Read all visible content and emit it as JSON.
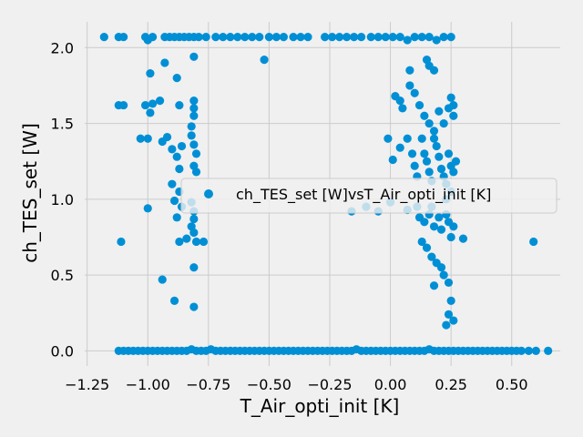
{
  "chart_data": {
    "type": "scatter",
    "xlabel": "T_Air_opti_init [K]",
    "ylabel": "ch_TES_set [W]",
    "xlim": [
      -1.26,
      0.7
    ],
    "ylim": [
      -0.1,
      2.17
    ],
    "xticks": [
      -1.25,
      -1.0,
      -0.75,
      -0.5,
      -0.25,
      0.0,
      0.25,
      0.5
    ],
    "xtick_labels": [
      "−1.25",
      "−1.00",
      "−0.75",
      "−0.50",
      "−0.25",
      "0.00",
      "0.25",
      "0.50"
    ],
    "yticks": [
      0.0,
      0.5,
      1.0,
      1.5,
      2.0
    ],
    "ytick_labels": [
      "0.0",
      "0.5",
      "1.0",
      "1.5",
      "2.0"
    ],
    "grid": true,
    "legend_position": "center-right",
    "colors": {
      "series": "#008fd5",
      "background": "#f0f0f0",
      "grid": "#cbcbcb"
    },
    "series": [
      {
        "name": "ch_TES_set [W]vsT_Air_opti_init [K]",
        "points": [
          [
            -1.18,
            2.07
          ],
          [
            -1.12,
            2.07
          ],
          [
            -1.1,
            2.07
          ],
          [
            -1.01,
            2.07
          ],
          [
            -1.0,
            2.05
          ],
          [
            -0.98,
            2.07
          ],
          [
            -0.93,
            2.07
          ],
          [
            -0.91,
            2.07
          ],
          [
            -0.89,
            2.07
          ],
          [
            -0.87,
            2.07
          ],
          [
            -0.85,
            2.07
          ],
          [
            -0.83,
            2.07
          ],
          [
            -0.81,
            2.07
          ],
          [
            -0.79,
            2.07
          ],
          [
            -0.76,
            2.07
          ],
          [
            -0.72,
            2.07
          ],
          [
            -0.69,
            2.07
          ],
          [
            -0.66,
            2.07
          ],
          [
            -0.63,
            2.07
          ],
          [
            -0.6,
            2.07
          ],
          [
            -0.57,
            2.07
          ],
          [
            -0.54,
            2.07
          ],
          [
            -0.5,
            2.07
          ],
          [
            -0.47,
            2.07
          ],
          [
            -0.44,
            2.07
          ],
          [
            -0.4,
            2.07
          ],
          [
            -0.37,
            2.07
          ],
          [
            -0.34,
            2.07
          ],
          [
            -0.27,
            2.07
          ],
          [
            -0.24,
            2.07
          ],
          [
            -0.21,
            2.07
          ],
          [
            -0.18,
            2.07
          ],
          [
            -0.15,
            2.07
          ],
          [
            -0.12,
            2.07
          ],
          [
            -0.08,
            2.07
          ],
          [
            -0.05,
            2.07
          ],
          [
            -0.02,
            2.07
          ],
          [
            0.01,
            2.07
          ],
          [
            0.04,
            2.07
          ],
          [
            0.07,
            2.05
          ],
          [
            0.1,
            2.07
          ],
          [
            0.13,
            2.07
          ],
          [
            0.16,
            2.07
          ],
          [
            0.19,
            2.05
          ],
          [
            0.22,
            2.07
          ],
          [
            0.25,
            2.07
          ],
          [
            -0.52,
            1.92
          ],
          [
            -0.81,
            1.94
          ],
          [
            -0.93,
            1.9
          ],
          [
            -0.99,
            1.83
          ],
          [
            -0.88,
            1.8
          ],
          [
            0.08,
            1.85
          ],
          [
            0.16,
            1.88
          ],
          [
            0.18,
            1.85
          ],
          [
            0.15,
            1.92
          ],
          [
            -1.12,
            1.62
          ],
          [
            -1.1,
            1.62
          ],
          [
            -1.01,
            1.62
          ],
          [
            -0.98,
            1.63
          ],
          [
            -0.95,
            1.65
          ],
          [
            -0.99,
            1.57
          ],
          [
            -0.87,
            1.62
          ],
          [
            -0.81,
            1.65
          ],
          [
            -0.81,
            1.6
          ],
          [
            -0.81,
            1.55
          ],
          [
            -0.82,
            1.48
          ],
          [
            0.02,
            1.68
          ],
          [
            0.04,
            1.65
          ],
          [
            0.05,
            1.6
          ],
          [
            0.08,
            1.75
          ],
          [
            0.1,
            1.7
          ],
          [
            0.12,
            1.62
          ],
          [
            0.14,
            1.55
          ],
          [
            0.16,
            1.5
          ],
          [
            0.18,
            1.45
          ],
          [
            0.2,
            1.58
          ],
          [
            0.22,
            1.5
          ],
          [
            0.24,
            1.6
          ],
          [
            0.25,
            1.67
          ],
          [
            0.26,
            1.62
          ],
          [
            0.26,
            1.55
          ],
          [
            -1.03,
            1.4
          ],
          [
            -1.0,
            1.4
          ],
          [
            -0.94,
            1.38
          ],
          [
            -0.92,
            1.41
          ],
          [
            -0.9,
            1.33
          ],
          [
            -0.88,
            1.28
          ],
          [
            -0.86,
            1.35
          ],
          [
            -0.82,
            1.42
          ],
          [
            -0.81,
            1.36
          ],
          [
            -0.8,
            1.3
          ],
          [
            -0.81,
            1.22
          ],
          [
            -0.8,
            1.18
          ],
          [
            -0.87,
            1.2
          ],
          [
            -0.9,
            1.1
          ],
          [
            -0.87,
            1.05
          ],
          [
            -0.01,
            1.4
          ],
          [
            0.01,
            1.26
          ],
          [
            0.04,
            1.34
          ],
          [
            0.07,
            1.4
          ],
          [
            0.09,
            1.3
          ],
          [
            0.1,
            1.22
          ],
          [
            0.11,
            1.15
          ],
          [
            0.13,
            1.4
          ],
          [
            0.14,
            1.3
          ],
          [
            0.15,
            1.25
          ],
          [
            0.16,
            1.18
          ],
          [
            0.17,
            1.12
          ],
          [
            0.18,
            1.4
          ],
          [
            0.19,
            1.35
          ],
          [
            0.2,
            1.28
          ],
          [
            0.21,
            1.2
          ],
          [
            0.22,
            1.15
          ],
          [
            0.23,
            1.1
          ],
          [
            0.24,
            1.3
          ],
          [
            0.25,
            1.22
          ],
          [
            0.26,
            1.18
          ],
          [
            0.27,
            1.25
          ],
          [
            0.25,
            1.05
          ],
          [
            0.23,
            1.0
          ],
          [
            -0.89,
            0.99
          ],
          [
            -0.86,
            0.95
          ],
          [
            -0.82,
            0.98
          ],
          [
            -0.81,
            0.92
          ],
          [
            -0.81,
            0.87
          ],
          [
            -0.82,
            0.82
          ],
          [
            -0.81,
            0.78
          ],
          [
            -1.0,
            0.94
          ],
          [
            -0.88,
            0.88
          ],
          [
            -0.84,
            0.74
          ],
          [
            -0.87,
            0.72
          ],
          [
            -0.8,
            0.72
          ],
          [
            -0.77,
            0.72
          ],
          [
            -1.11,
            0.72
          ],
          [
            -0.16,
            0.92
          ],
          [
            -0.1,
            0.95
          ],
          [
            -0.05,
            0.92
          ],
          [
            0.0,
            0.98
          ],
          [
            0.07,
            0.93
          ],
          [
            0.11,
            0.95
          ],
          [
            0.12,
            0.88
          ],
          [
            0.14,
            0.85
          ],
          [
            0.16,
            0.9
          ],
          [
            0.17,
            0.95
          ],
          [
            0.18,
            0.82
          ],
          [
            0.2,
            0.88
          ],
          [
            0.21,
            0.8
          ],
          [
            0.23,
            0.9
          ],
          [
            0.24,
            0.85
          ],
          [
            0.25,
            0.75
          ],
          [
            0.26,
            0.82
          ],
          [
            0.3,
            0.74
          ],
          [
            0.13,
            0.72
          ],
          [
            0.15,
            0.68
          ],
          [
            0.17,
            0.62
          ],
          [
            0.19,
            0.58
          ],
          [
            0.21,
            0.55
          ],
          [
            0.22,
            0.5
          ],
          [
            0.24,
            0.45
          ],
          [
            0.18,
            0.43
          ],
          [
            0.25,
            0.33
          ],
          [
            0.24,
            0.24
          ],
          [
            0.26,
            0.2
          ],
          [
            0.23,
            0.17
          ],
          [
            0.59,
            0.72
          ],
          [
            -0.94,
            0.47
          ],
          [
            -0.81,
            0.55
          ],
          [
            -0.89,
            0.33
          ],
          [
            -0.81,
            0.29
          ],
          [
            -1.12,
            0.0
          ],
          [
            -1.1,
            0.0
          ],
          [
            -1.08,
            0.0
          ],
          [
            -1.06,
            0.0
          ],
          [
            -1.04,
            0.0
          ],
          [
            -1.02,
            0.0
          ],
          [
            -1.0,
            0.0
          ],
          [
            -0.98,
            0.0
          ],
          [
            -0.96,
            0.0
          ],
          [
            -0.94,
            0.0
          ],
          [
            -0.92,
            0.0
          ],
          [
            -0.9,
            0.0
          ],
          [
            -0.88,
            0.0
          ],
          [
            -0.86,
            0.0
          ],
          [
            -0.84,
            0.0
          ],
          [
            -0.82,
            0.01
          ],
          [
            -0.8,
            0.0
          ],
          [
            -0.78,
            0.0
          ],
          [
            -0.76,
            0.0
          ],
          [
            -0.74,
            0.01
          ],
          [
            -0.72,
            0.0
          ],
          [
            -0.7,
            0.0
          ],
          [
            -0.68,
            0.0
          ],
          [
            -0.66,
            0.0
          ],
          [
            -0.64,
            0.0
          ],
          [
            -0.62,
            0.0
          ],
          [
            -0.6,
            0.0
          ],
          [
            -0.58,
            0.0
          ],
          [
            -0.56,
            0.0
          ],
          [
            -0.54,
            0.0
          ],
          [
            -0.52,
            0.0
          ],
          [
            -0.5,
            0.0
          ],
          [
            -0.48,
            0.0
          ],
          [
            -0.46,
            0.0
          ],
          [
            -0.44,
            0.0
          ],
          [
            -0.42,
            0.0
          ],
          [
            -0.4,
            0.0
          ],
          [
            -0.38,
            0.0
          ],
          [
            -0.36,
            0.0
          ],
          [
            -0.34,
            0.0
          ],
          [
            -0.32,
            0.0
          ],
          [
            -0.3,
            0.0
          ],
          [
            -0.28,
            0.0
          ],
          [
            -0.26,
            0.0
          ],
          [
            -0.24,
            0.0
          ],
          [
            -0.22,
            0.0
          ],
          [
            -0.2,
            0.0
          ],
          [
            -0.18,
            0.0
          ],
          [
            -0.16,
            0.0
          ],
          [
            -0.14,
            0.01
          ],
          [
            -0.12,
            0.0
          ],
          [
            -0.1,
            0.0
          ],
          [
            -0.08,
            0.0
          ],
          [
            -0.06,
            0.0
          ],
          [
            -0.04,
            0.0
          ],
          [
            -0.02,
            0.0
          ],
          [
            0.0,
            0.0
          ],
          [
            0.02,
            0.0
          ],
          [
            0.04,
            0.0
          ],
          [
            0.06,
            0.0
          ],
          [
            0.08,
            0.0
          ],
          [
            0.1,
            0.0
          ],
          [
            0.12,
            0.0
          ],
          [
            0.14,
            0.0
          ],
          [
            0.16,
            0.01
          ],
          [
            0.18,
            0.0
          ],
          [
            0.2,
            0.0
          ],
          [
            0.22,
            0.0
          ],
          [
            0.24,
            0.0
          ],
          [
            0.26,
            0.0
          ],
          [
            0.28,
            0.0
          ],
          [
            0.3,
            0.0
          ],
          [
            0.32,
            0.0
          ],
          [
            0.34,
            0.0
          ],
          [
            0.36,
            0.0
          ],
          [
            0.38,
            0.0
          ],
          [
            0.4,
            0.0
          ],
          [
            0.42,
            0.0
          ],
          [
            0.44,
            0.0
          ],
          [
            0.46,
            0.0
          ],
          [
            0.48,
            0.0
          ],
          [
            0.5,
            0.0
          ],
          [
            0.52,
            0.0
          ],
          [
            0.54,
            0.0
          ],
          [
            0.57,
            0.0
          ],
          [
            0.6,
            0.0
          ],
          [
            0.65,
            0.0
          ]
        ]
      }
    ]
  }
}
